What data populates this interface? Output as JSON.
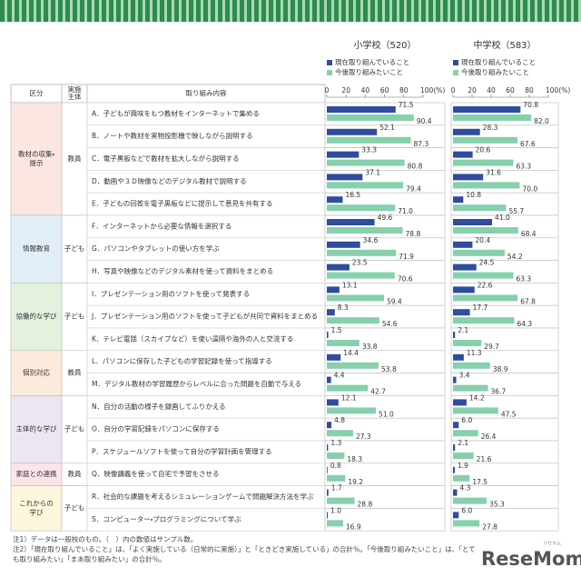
{
  "table": {
    "headers": {
      "category": "区分",
      "actor": [
        "実施",
        "主体"
      ],
      "content": "取り組み内容"
    },
    "groups": [
      {
        "category": [
          "教材の収集・",
          "提示"
        ],
        "actor": "教員",
        "color": "#fbe6e2",
        "items": [
          "A．子どもが興味をもつ教材をインターネットで集める",
          "B．ノートや教材を実物投影機で映しながら説明する",
          "C．電子黒板などで教材を拡大しながら説明する",
          "D．動画や３Ｄ映像などのデジタル教材で説明する",
          "E．子どもの回答を電子黒板などに提示して意見を共有する"
        ]
      },
      {
        "category": [
          "情報教育"
        ],
        "actor": "子ども",
        "color": "#e2eef7",
        "items": [
          "F．インターネットから必要な情報を選択する",
          "G．パソコンやタブレットの使い方を学ぶ",
          "H．写真や映像などのデジタル素材を使って資料をまとめる"
        ]
      },
      {
        "category": [
          "協働的な学び"
        ],
        "actor": "子ども",
        "color": "#e4f1df",
        "items": [
          "I．プレゼンテーション用のソフトを使って発表する",
          "J．プレゼンテーション用のソフトを使って子どもが共同で資料をまとめる",
          "K．テレビ電話（スカイプなど）を使い遠隔や海外の人と交流する"
        ]
      },
      {
        "category": [
          "個別対応"
        ],
        "actor": "教員",
        "color": "#fcebdc",
        "items": [
          "L．パソコンに保存した子どもの学習記録を使って指導する",
          "M．デジタル教材の学習履歴からレベルに合った問題を自動で与える"
        ]
      },
      {
        "category": [
          "主体的な学び"
        ],
        "actor": "子ども",
        "color": "#ebe6f2",
        "items": [
          "N．自分の活動の様子を録画してふりかえる",
          "O．自分の学習記録をパソコンに保存する",
          "P．スケジュールソフトを使って自分の学習計画を管理する"
        ]
      },
      {
        "category": [
          "家庭との連携"
        ],
        "actor": "教員",
        "color": "#fbe4ea",
        "items": [
          "Q．映像講義を使って自宅で予習をさせる"
        ]
      },
      {
        "category": [
          "これからの",
          "学び"
        ],
        "actor": "子ども",
        "color": "#fcf6dc",
        "items": [
          "R．社会的な課題を考えるシミュレーションゲームで問題解決方法を学ぶ",
          "S．コンピューター・プログラミングについて学ぶ"
        ]
      }
    ]
  },
  "chart_data": [
    {
      "type": "barh",
      "title": "小学校（520）",
      "xlim": [
        0,
        100
      ],
      "xticks": [
        0,
        20,
        40,
        60,
        80,
        {
          "value": 100,
          "label": "100(%)"
        }
      ],
      "series": [
        {
          "name": "現在取り組んでいること",
          "color": "#2f4d9c",
          "values": [
            71.5,
            52.1,
            33.3,
            37.1,
            16.5,
            49.6,
            34.6,
            23.5,
            13.1,
            8.3,
            1.5,
            14.4,
            4.4,
            12.1,
            4.8,
            1.3,
            0.8,
            1.7,
            1.0
          ],
          "value_labels": [
            "71.5",
            "52.1",
            "33.3",
            "37.1",
            "16.5",
            "49.6",
            "34.6",
            "23.5",
            "13.1",
            "8.3",
            "1.5",
            "14.4",
            "4.4",
            "12.1",
            "4.8",
            "1.3",
            "0.8",
            "1.7",
            "1.0"
          ]
        },
        {
          "name": "今後取り組みたいこと",
          "color": "#86d0ab",
          "values": [
            90.4,
            87.3,
            80.8,
            79.4,
            71.0,
            78.8,
            71.9,
            70.6,
            59.4,
            54.6,
            33.8,
            53.8,
            42.7,
            51.0,
            27.3,
            18.3,
            19.2,
            28.8,
            16.9
          ],
          "value_labels": [
            "90.4",
            "87.3",
            "80.8",
            "79.4",
            "71.0",
            "78.8",
            "71.9",
            "70.6",
            "59.4",
            "54.6",
            "33.8",
            "53.8",
            "42.7",
            "51.0",
            "27.3",
            "18.3",
            "19.2",
            "28.8",
            "16.9"
          ]
        }
      ]
    },
    {
      "type": "barh",
      "title": "中学校（583）",
      "xlim": [
        0,
        100
      ],
      "xticks": [
        0,
        20,
        40,
        60,
        80,
        {
          "value": 100,
          "label": "100(%)"
        }
      ],
      "series": [
        {
          "name": "現在取り組んでいること",
          "color": "#2f4d9c",
          "values": [
            70.8,
            28.3,
            20.6,
            31.6,
            10.8,
            41.0,
            20.4,
            24.5,
            22.6,
            17.7,
            2.1,
            11.3,
            3.4,
            14.2,
            6.0,
            2.1,
            1.9,
            4.3,
            6.0
          ],
          "value_labels": [
            "70.8",
            "28.3",
            "20.6",
            "31.6",
            "10.8",
            "41.0",
            "20.4",
            "24.5",
            "22.6",
            "17.7",
            "2.1",
            "11.3",
            "3.4",
            "14.2",
            "6.0",
            "2.1",
            "1.9",
            "4.3",
            "6.0"
          ]
        },
        {
          "name": "今後取り組みたいこと",
          "color": "#86d0ab",
          "values": [
            82.0,
            67.6,
            63.3,
            70.0,
            55.7,
            68.4,
            54.2,
            63.3,
            67.8,
            64.3,
            29.7,
            38.9,
            36.7,
            47.5,
            26.4,
            21.6,
            17.5,
            35.3,
            27.8
          ],
          "value_labels": [
            "82.0",
            "67.6",
            "63.3",
            "70.0",
            "55.7",
            "68.4",
            "54.2",
            "63.3",
            "67.8",
            "64.3",
            "29.7",
            "38.9",
            "36.7",
            "47.5",
            "26.4",
            "21.6",
            "17.5",
            "35.3",
            "27.8"
          ]
        }
      ]
    }
  ],
  "notes": [
    "注1）データは一般校のもの。（　）内の数値はサンプル数。",
    "注2）「現在取り組んでいること」は、「よく実施している（日常的に実施）」と「ときどき実施している」の合計％。「今後取り組みたいこと」は、「とて",
    "も取り組みたい」「まあ取り組みたい」の合計％。"
  ],
  "logo": "ReseMom",
  "logo_sub": "リセマム"
}
